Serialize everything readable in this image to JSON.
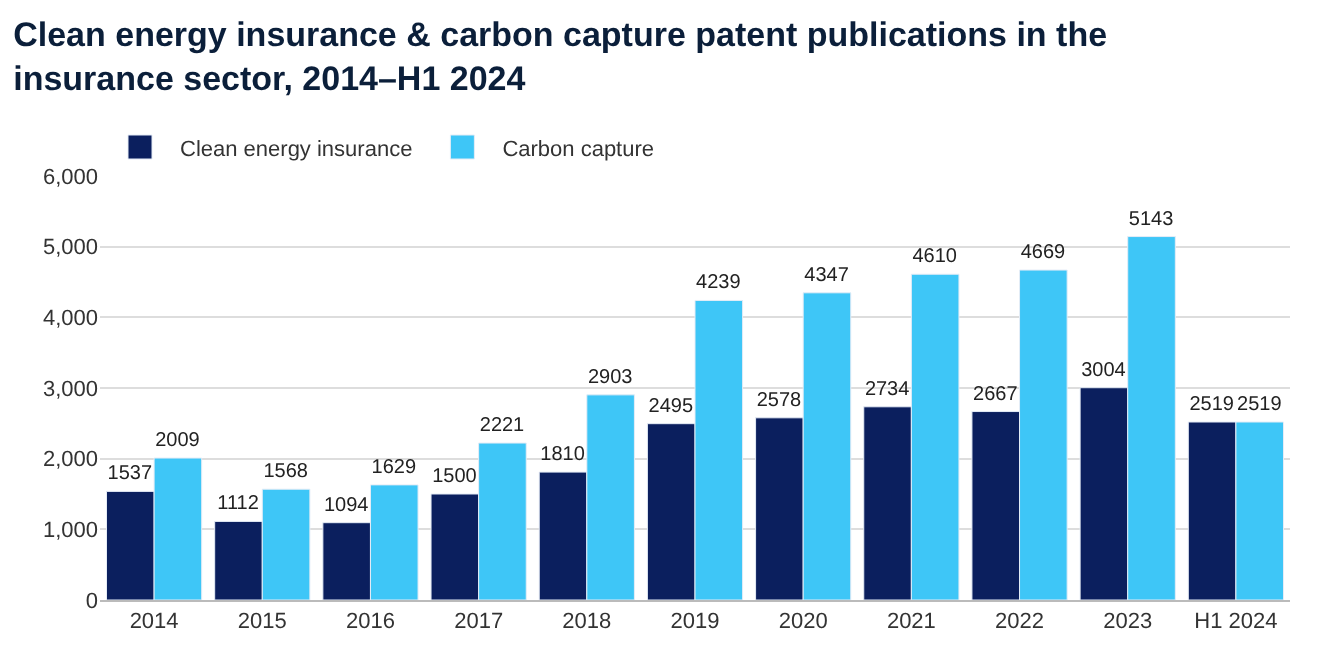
{
  "chart_data": {
    "type": "bar",
    "title": "Clean energy insurance & carbon capture patent publications in the insurance sector, 2014–H1 2024",
    "categories": [
      "2014",
      "2015",
      "2016",
      "2017",
      "2018",
      "2019",
      "2020",
      "2021",
      "2022",
      "2023",
      "H1 2024"
    ],
    "series": [
      {
        "name": "Clean energy insurance",
        "color": "#0b1f5e",
        "values": [
          1537,
          1112,
          1094,
          1500,
          1810,
          2495,
          2578,
          2734,
          2667,
          3004,
          2519
        ]
      },
      {
        "name": "Carbon capture",
        "color": "#3ec6f7",
        "values": [
          2009,
          1568,
          1629,
          2221,
          2903,
          4239,
          4347,
          4610,
          4669,
          5143,
          2519
        ]
      }
    ],
    "ylim": [
      0,
      6000
    ],
    "yticks": [
      0,
      {
        "value": 1000,
        "label": "1,000"
      },
      {
        "value": 2000,
        "label": "2,000"
      },
      {
        "value": 3000,
        "label": "3,000"
      },
      {
        "value": 4000,
        "label": "4,000"
      },
      {
        "value": 5000,
        "label": "5,000"
      },
      {
        "value": 6000,
        "label": "6,000"
      }
    ],
    "grid": "y",
    "legend": "top left",
    "data_labels": true
  }
}
